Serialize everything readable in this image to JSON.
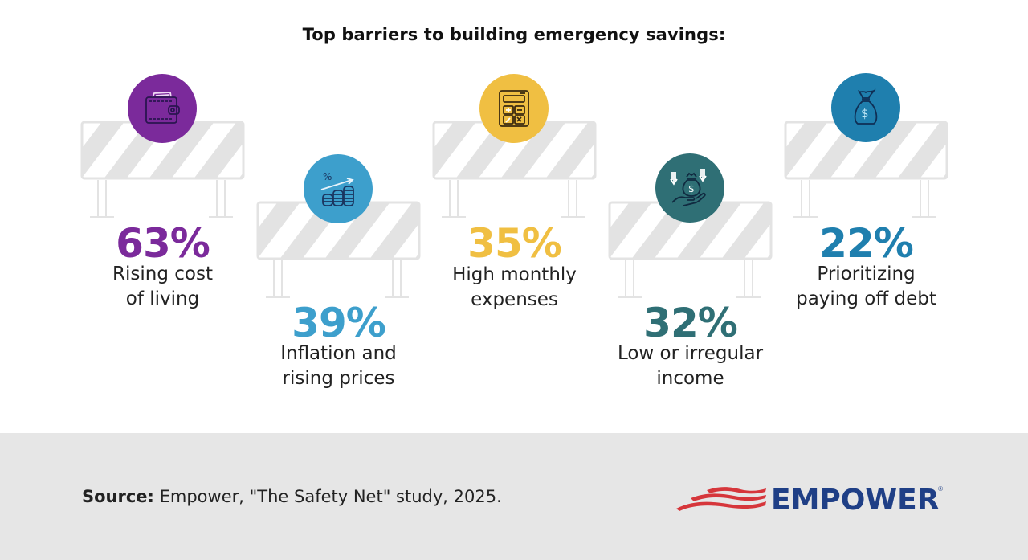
{
  "title": "Top barriers to building emergency savings:",
  "colors": {
    "purple": "#7b2a9b",
    "light_blue": "#3d9fcc",
    "yellow": "#f0bf42",
    "teal": "#2f6f75",
    "blue": "#1f7fae",
    "barrier_gray": "#e3e3e3",
    "footer_bg": "#e6e6e6",
    "logo_blue": "#1f3f86",
    "logo_red": "#d6363b"
  },
  "barriers": [
    {
      "percent": "63%",
      "label_line1": "Rising cost",
      "label_line2": "of living",
      "icon": "wallet-icon",
      "color": "#7b2a9b"
    },
    {
      "percent": "39%",
      "label_line1": "Inflation and",
      "label_line2": "rising prices",
      "icon": "rising-coins-icon",
      "color": "#3d9fcc"
    },
    {
      "percent": "35%",
      "label_line1": "High monthly",
      "label_line2": "expenses",
      "icon": "calculator-icon",
      "color": "#f0bf42"
    },
    {
      "percent": "32%",
      "label_line1": "Low or irregular",
      "label_line2": "income",
      "icon": "money-bag-hand-icon",
      "color": "#2f6f75"
    },
    {
      "percent": "22%",
      "label_line1": "Prioritizing",
      "label_line2": "paying off debt",
      "icon": "money-bag-icon",
      "color": "#1f7fae"
    }
  ],
  "footer": {
    "source_label": "Source:",
    "source_text": " Empower, \"The Safety Net\" study, 2025.",
    "logo_text": "EMPOWER",
    "logo_reg": "®"
  }
}
